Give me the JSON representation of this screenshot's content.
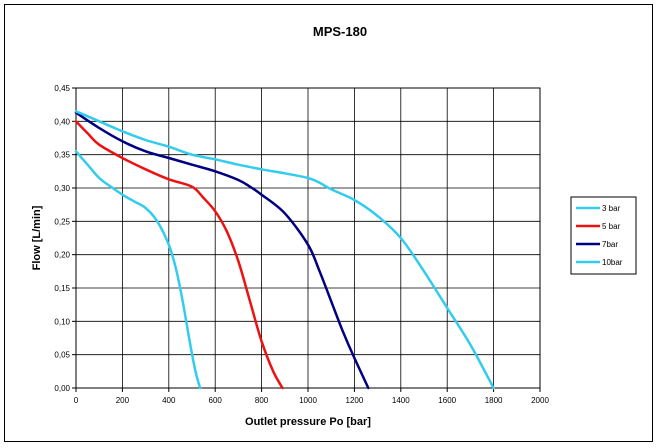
{
  "chart_data": {
    "type": "line",
    "title": "MPS-180",
    "xlabel": "Outlet pressure Po [bar]",
    "ylabel": "Flow [L/min]",
    "xlim": [
      0,
      2000
    ],
    "ylim": [
      0,
      0.45
    ],
    "x_ticks": [
      "0",
      "200",
      "400",
      "600",
      "800",
      "1000",
      "1200",
      "1400",
      "1600",
      "1800",
      "2000"
    ],
    "y_ticks": [
      "0,00",
      "0,05",
      "0,10",
      "0,15",
      "0,20",
      "0,25",
      "0,30",
      "0,35",
      "0,40",
      "0,45"
    ],
    "grid": true,
    "legend_position": "right",
    "series": [
      {
        "name": "3 bar",
        "color": "#33ccee",
        "points": [
          [
            0,
            0.355
          ],
          [
            50,
            0.335
          ],
          [
            100,
            0.315
          ],
          [
            150,
            0.302
          ],
          [
            200,
            0.29
          ],
          [
            250,
            0.28
          ],
          [
            300,
            0.27
          ],
          [
            350,
            0.25
          ],
          [
            400,
            0.215
          ],
          [
            430,
            0.18
          ],
          [
            460,
            0.13
          ],
          [
            490,
            0.07
          ],
          [
            515,
            0.025
          ],
          [
            535,
            0.0
          ]
        ]
      },
      {
        "name": "5 bar",
        "color": "#ee1111",
        "points": [
          [
            0,
            0.4
          ],
          [
            50,
            0.382
          ],
          [
            100,
            0.365
          ],
          [
            200,
            0.345
          ],
          [
            300,
            0.328
          ],
          [
            400,
            0.313
          ],
          [
            500,
            0.302
          ],
          [
            550,
            0.285
          ],
          [
            600,
            0.265
          ],
          [
            650,
            0.235
          ],
          [
            700,
            0.19
          ],
          [
            750,
            0.13
          ],
          [
            800,
            0.07
          ],
          [
            850,
            0.025
          ],
          [
            890,
            0.0
          ]
        ]
      },
      {
        "name": "7bar",
        "color": "#000080",
        "points": [
          [
            0,
            0.413
          ],
          [
            100,
            0.39
          ],
          [
            200,
            0.37
          ],
          [
            300,
            0.355
          ],
          [
            400,
            0.345
          ],
          [
            500,
            0.335
          ],
          [
            600,
            0.325
          ],
          [
            700,
            0.312
          ],
          [
            750,
            0.302
          ],
          [
            800,
            0.29
          ],
          [
            900,
            0.262
          ],
          [
            1000,
            0.215
          ],
          [
            1050,
            0.175
          ],
          [
            1100,
            0.13
          ],
          [
            1150,
            0.085
          ],
          [
            1200,
            0.045
          ],
          [
            1260,
            0.0
          ]
        ]
      },
      {
        "name": "10bar",
        "color": "#33ccee",
        "points": [
          [
            0,
            0.415
          ],
          [
            100,
            0.4
          ],
          [
            200,
            0.385
          ],
          [
            300,
            0.372
          ],
          [
            400,
            0.362
          ],
          [
            500,
            0.35
          ],
          [
            600,
            0.343
          ],
          [
            700,
            0.335
          ],
          [
            800,
            0.328
          ],
          [
            900,
            0.322
          ],
          [
            1000,
            0.315
          ],
          [
            1050,
            0.308
          ],
          [
            1100,
            0.298
          ],
          [
            1200,
            0.282
          ],
          [
            1300,
            0.258
          ],
          [
            1400,
            0.225
          ],
          [
            1500,
            0.175
          ],
          [
            1600,
            0.12
          ],
          [
            1700,
            0.065
          ],
          [
            1800,
            0.0
          ]
        ]
      }
    ]
  }
}
